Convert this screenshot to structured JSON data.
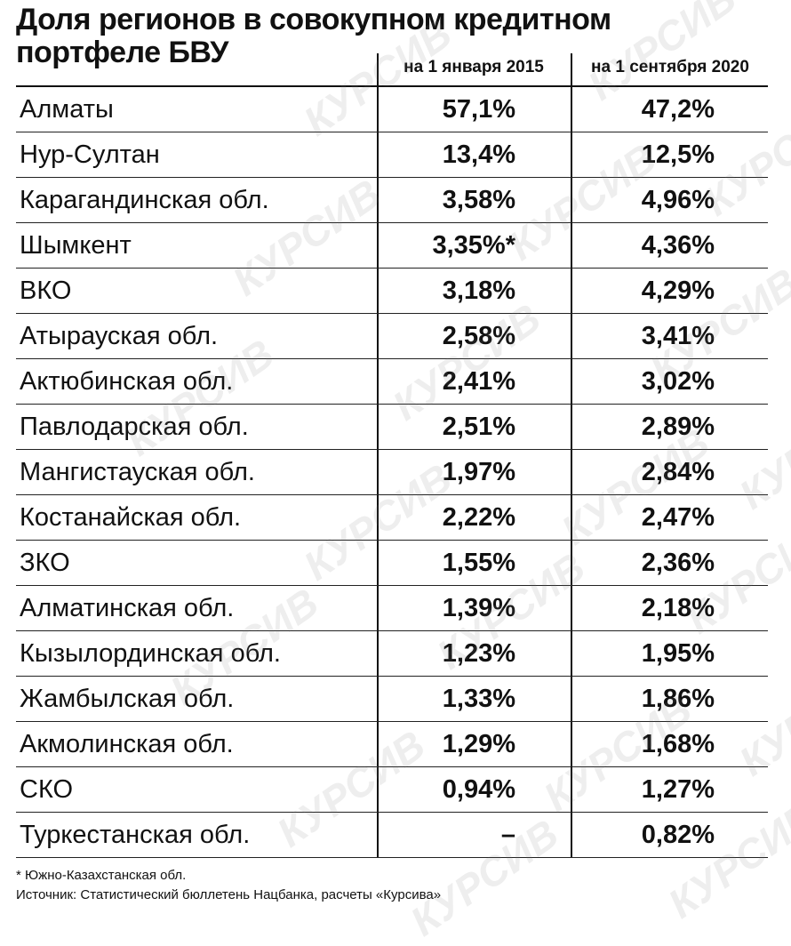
{
  "chart_data": {
    "type": "table",
    "title": "Доля регионов в совокупном кредитном портфеле БВУ",
    "columns": [
      "на 1 января 2015",
      "на 1 сентября 2020"
    ],
    "rows": [
      {
        "region": "Алматы",
        "v2015": "57,1%",
        "v2020": "47,2%"
      },
      {
        "region": "Нур-Султан",
        "v2015": "13,4%",
        "v2020": "12,5%"
      },
      {
        "region": "Карагандинская обл.",
        "v2015": "3,58%",
        "v2020": "4,96%"
      },
      {
        "region": "Шымкент",
        "v2015": "3,35%*",
        "v2020": "4,36%"
      },
      {
        "region": "ВКО",
        "v2015": "3,18%",
        "v2020": "4,29%"
      },
      {
        "region": "Атырауская обл.",
        "v2015": "2,58%",
        "v2020": "3,41%"
      },
      {
        "region": "Актюбинская обл.",
        "v2015": "2,41%",
        "v2020": "3,02%"
      },
      {
        "region": "Павлодарская обл.",
        "v2015": "2,51%",
        "v2020": "2,89%"
      },
      {
        "region": "Мангистауская обл.",
        "v2015": "1,97%",
        "v2020": "2,84%"
      },
      {
        "region": "Костанайская обл.",
        "v2015": "2,22%",
        "v2020": "2,47%"
      },
      {
        "region": "ЗКО",
        "v2015": "1,55%",
        "v2020": "2,36%"
      },
      {
        "region": "Алматинская обл.",
        "v2015": "1,39%",
        "v2020": "2,18%"
      },
      {
        "region": "Кызылординская обл.",
        "v2015": "1,23%",
        "v2020": "1,95%"
      },
      {
        "region": "Жамбылская обл.",
        "v2015": "1,33%",
        "v2020": "1,86%"
      },
      {
        "region": "Акмолинская обл.",
        "v2015": "1,29%",
        "v2020": "1,68%"
      },
      {
        "region": "СКО",
        "v2015": "0,94%",
        "v2020": "1,27%"
      },
      {
        "region": "Туркестанская обл.",
        "v2015": "–",
        "v2020": "0,82%"
      }
    ],
    "footnote": "* Южно-Казахстанская обл.",
    "source": "Источник: Статистический бюллетень Нацбанка, расчеты «Курсива»"
  },
  "watermark_text": "КУРСИВ",
  "colors": {
    "text": "#111111",
    "background": "#ffffff",
    "watermark": "#787878"
  }
}
